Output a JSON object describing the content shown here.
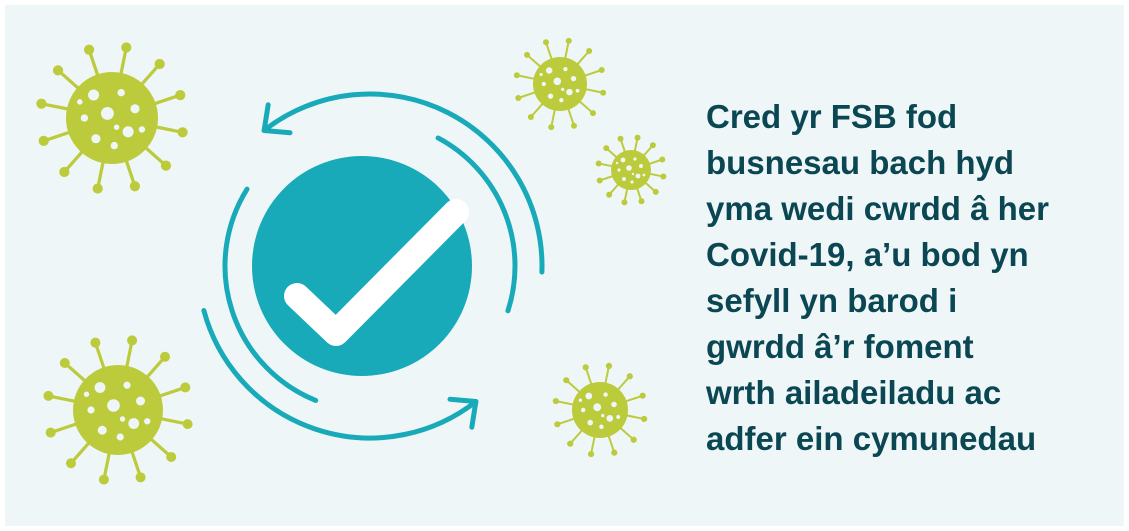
{
  "text": {
    "lines": [
      "Cred yr FSB fod",
      "busnesau bach hyd",
      "yma wedi cwrdd â her",
      "Covid-19, a’u bod yn",
      "sefyll yn barod i",
      "gwrdd â’r foment",
      "wrth ailadeiladu ac",
      "adfer ein cymunedau"
    ]
  }
}
